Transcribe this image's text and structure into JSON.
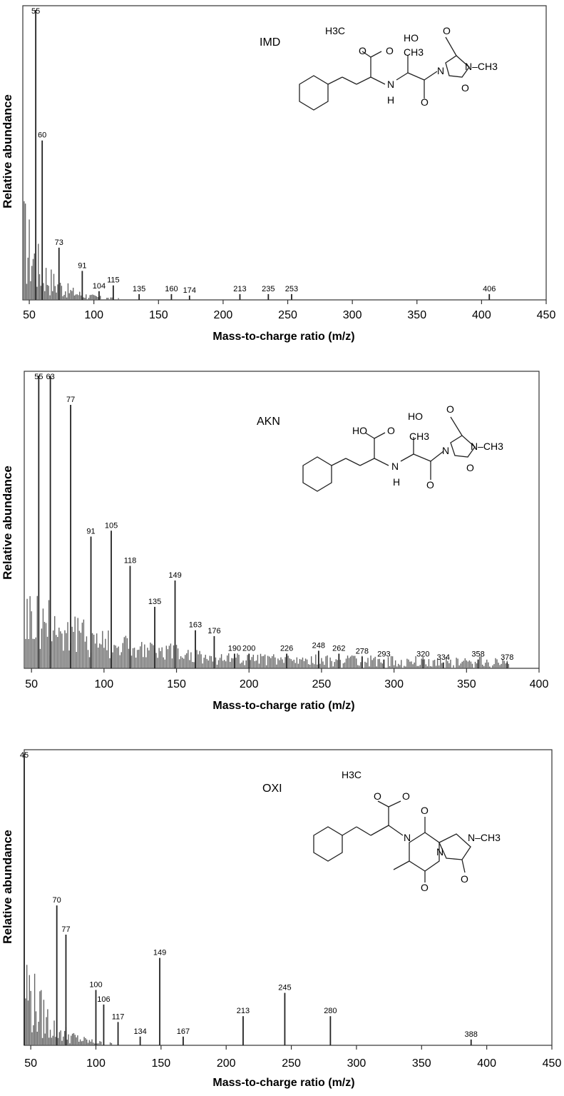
{
  "chart_data": [
    {
      "type": "bar",
      "compound": "IMD",
      "xlabel": "Mass-to-charge ratio (m/z)",
      "ylabel": "Relative abundance",
      "xlim": [
        45,
        450
      ],
      "xticks": [
        50,
        100,
        150,
        200,
        250,
        300,
        350,
        400,
        450
      ],
      "ylim": [
        0,
        100
      ],
      "peaks": [
        {
          "mz": 55,
          "abundance": 100,
          "label": "55"
        },
        {
          "mz": 60,
          "abundance": 55,
          "label": "60"
        },
        {
          "mz": 73,
          "abundance": 18,
          "label": "73"
        },
        {
          "mz": 91,
          "abundance": 10,
          "label": "91"
        },
        {
          "mz": 104,
          "abundance": 3,
          "label": "104"
        },
        {
          "mz": 115,
          "abundance": 5,
          "label": "115"
        },
        {
          "mz": 135,
          "abundance": 2,
          "label": "135"
        },
        {
          "mz": 160,
          "abundance": 2,
          "label": "160"
        },
        {
          "mz": 174,
          "abundance": 1.5,
          "label": "174"
        },
        {
          "mz": 213,
          "abundance": 2,
          "label": "213"
        },
        {
          "mz": 235,
          "abundance": 2,
          "label": "235"
        },
        {
          "mz": 253,
          "abundance": 2,
          "label": "253"
        },
        {
          "mz": 406,
          "abundance": 2,
          "label": "406"
        }
      ],
      "structure_labels": [
        "H3C",
        "O",
        "O",
        "N",
        "H",
        "CH3",
        "HO",
        "O",
        "N",
        "N–CH3",
        "O",
        "O"
      ]
    },
    {
      "type": "bar",
      "compound": "AKN",
      "xlabel": "Mass-to-charge ratio (m/z)",
      "ylabel": "Relative abundance",
      "xlim": [
        45,
        400
      ],
      "xticks": [
        50,
        100,
        150,
        200,
        250,
        300,
        350,
        400
      ],
      "ylim": [
        0,
        100
      ],
      "peaks": [
        {
          "mz": 55,
          "abundance": 100,
          "label": "55"
        },
        {
          "mz": 63,
          "abundance": 100,
          "label": "63"
        },
        {
          "mz": 77,
          "abundance": 90,
          "label": "77"
        },
        {
          "mz": 91,
          "abundance": 45,
          "label": "91"
        },
        {
          "mz": 105,
          "abundance": 47,
          "label": "105"
        },
        {
          "mz": 118,
          "abundance": 35,
          "label": "118"
        },
        {
          "mz": 135,
          "abundance": 21,
          "label": "135"
        },
        {
          "mz": 149,
          "abundance": 30,
          "label": "149"
        },
        {
          "mz": 163,
          "abundance": 13,
          "label": "163"
        },
        {
          "mz": 176,
          "abundance": 11,
          "label": "176"
        },
        {
          "mz": 190,
          "abundance": 5,
          "label": "190"
        },
        {
          "mz": 200,
          "abundance": 5,
          "label": "200"
        },
        {
          "mz": 226,
          "abundance": 5,
          "label": "226"
        },
        {
          "mz": 248,
          "abundance": 6,
          "label": "248"
        },
        {
          "mz": 262,
          "abundance": 5,
          "label": "262"
        },
        {
          "mz": 278,
          "abundance": 4,
          "label": "278"
        },
        {
          "mz": 293,
          "abundance": 3,
          "label": "293"
        },
        {
          "mz": 320,
          "abundance": 3,
          "label": "320"
        },
        {
          "mz": 334,
          "abundance": 2,
          "label": "334"
        },
        {
          "mz": 358,
          "abundance": 3,
          "label": "358"
        },
        {
          "mz": 378,
          "abundance": 2,
          "label": "378"
        }
      ],
      "structure_labels": [
        "HO",
        "O",
        "CH3",
        "N",
        "H",
        "O",
        "HO",
        "O",
        "N",
        "N–CH3",
        "O"
      ]
    },
    {
      "type": "bar",
      "compound": "OXI",
      "xlabel": "Mass-to-charge ratio (m/z)",
      "ylabel": "Relative abundance",
      "xlim": [
        45,
        450
      ],
      "xticks": [
        50,
        100,
        150,
        200,
        250,
        300,
        350,
        400,
        450
      ],
      "ylim": [
        0,
        100
      ],
      "peaks": [
        {
          "mz": 45,
          "abundance": 100,
          "label": "45"
        },
        {
          "mz": 70,
          "abundance": 48,
          "label": "70"
        },
        {
          "mz": 77,
          "abundance": 38,
          "label": "77"
        },
        {
          "mz": 100,
          "abundance": 19,
          "label": "100"
        },
        {
          "mz": 106,
          "abundance": 14,
          "label": "106"
        },
        {
          "mz": 117,
          "abundance": 8,
          "label": "117"
        },
        {
          "mz": 134,
          "abundance": 3,
          "label": "134"
        },
        {
          "mz": 149,
          "abundance": 30,
          "label": "149"
        },
        {
          "mz": 167,
          "abundance": 3,
          "label": "167"
        },
        {
          "mz": 213,
          "abundance": 10,
          "label": "213"
        },
        {
          "mz": 245,
          "abundance": 18,
          "label": "245"
        },
        {
          "mz": 280,
          "abundance": 10,
          "label": "280"
        },
        {
          "mz": 388,
          "abundance": 2,
          "label": "388"
        }
      ],
      "structure_labels": [
        "H3C",
        "O",
        "O",
        "O",
        "N",
        "N",
        "N–CH3",
        "O",
        "O"
      ]
    }
  ]
}
